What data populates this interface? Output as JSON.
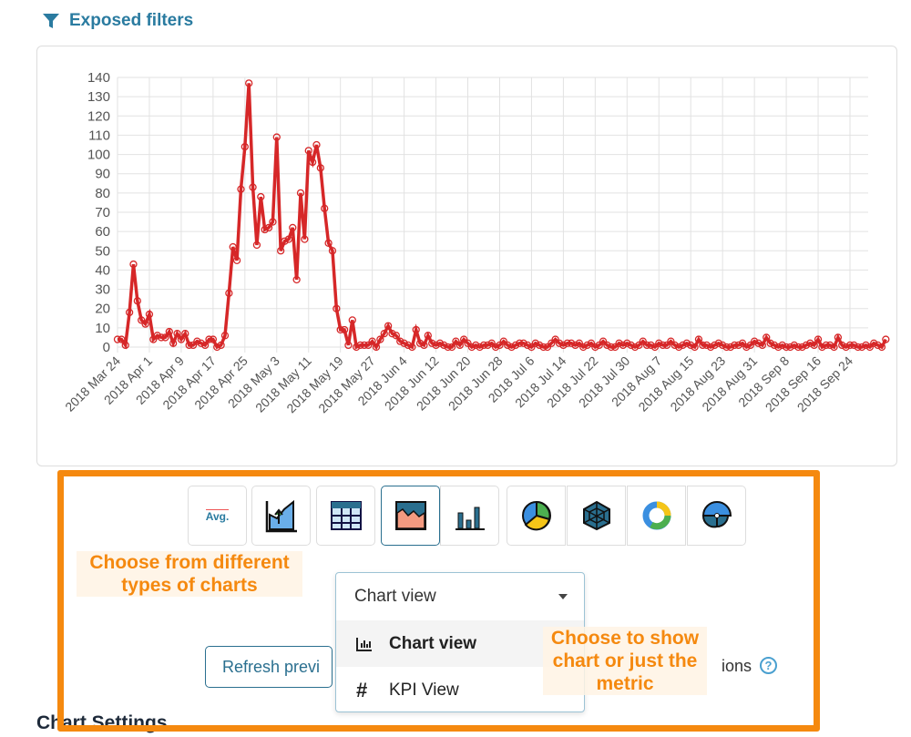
{
  "header": {
    "title": "Exposed filters",
    "icon": "filter-icon"
  },
  "chart_data": {
    "type": "line",
    "x_start": "2018-03-24",
    "x_interval": "1 day",
    "xtick_labels": [
      "2018 Mar 24",
      "2018 Apr 1",
      "2018 Apr 9",
      "2018 Apr 17",
      "2018 Apr 25",
      "2018 May 3",
      "2018 May 11",
      "2018 May 19",
      "2018 May 27",
      "2018 Jun 4",
      "2018 Jun 12",
      "2018 Jun 20",
      "2018 Jun 28",
      "2018 Jul 6",
      "2018 Jul 14",
      "2018 Jul 22",
      "2018 Jul 30",
      "2018 Aug 7",
      "2018 Aug 15",
      "2018 Aug 23",
      "2018 Aug 31",
      "2018 Sep 8",
      "2018 Sep 16",
      "2018 Sep 24"
    ],
    "yticks": [
      0,
      10,
      20,
      30,
      40,
      50,
      60,
      70,
      80,
      90,
      100,
      110,
      120,
      130,
      140
    ],
    "ylim": [
      0,
      140
    ],
    "grid": true,
    "color": "#d62728",
    "values": [
      4,
      4,
      1,
      18,
      43,
      24,
      14,
      12,
      17,
      4,
      6,
      5,
      5,
      8,
      2,
      7,
      4,
      7,
      1,
      1,
      3,
      2,
      1,
      4,
      4,
      0,
      1,
      6,
      28,
      52,
      45,
      82,
      104,
      137,
      83,
      53,
      78,
      61,
      62,
      65,
      109,
      50,
      55,
      56,
      62,
      35,
      80,
      56,
      102,
      96,
      105,
      93,
      72,
      54,
      50,
      20,
      9,
      9,
      1,
      14,
      0,
      1,
      1,
      1,
      3,
      0,
      4,
      7,
      11,
      7,
      6,
      3,
      2,
      1,
      0,
      9,
      2,
      1,
      6,
      2,
      1,
      2,
      1,
      0,
      0,
      3,
      1,
      4,
      2,
      0,
      1,
      0,
      1,
      1,
      2,
      0,
      1,
      3,
      1,
      0,
      1,
      2,
      2,
      1,
      0,
      2,
      1,
      0,
      0,
      2,
      4,
      2,
      1,
      2,
      2,
      1,
      2,
      0,
      1,
      2,
      0,
      1,
      3,
      1,
      0,
      0,
      2,
      1,
      2,
      1,
      0,
      1,
      3,
      1,
      1,
      0,
      2,
      1,
      1,
      3,
      1,
      0,
      1,
      2,
      1,
      0,
      4,
      1,
      1,
      0,
      1,
      2,
      1,
      0,
      0,
      1,
      1,
      2,
      0,
      1,
      3,
      2,
      1,
      5,
      2,
      1,
      0,
      1,
      0,
      0,
      1,
      0,
      0,
      1,
      2,
      1,
      4,
      0,
      1,
      1,
      0,
      5,
      1,
      0,
      1,
      1,
      0,
      0,
      1,
      0,
      2,
      1,
      0,
      4
    ]
  },
  "toolbar": {
    "buttons": [
      {
        "name": "kpi-avg",
        "label": "Avg.",
        "icon": "avg-icon"
      },
      {
        "name": "area-up",
        "icon": "area-growth-icon"
      },
      {
        "name": "table",
        "icon": "table-icon"
      },
      {
        "name": "area",
        "icon": "area-chart-icon",
        "active": true
      },
      {
        "name": "bar",
        "icon": "bar-chart-icon"
      },
      {
        "name": "pie",
        "icon": "pie-chart-icon"
      },
      {
        "name": "radar",
        "icon": "radar-chart-icon"
      },
      {
        "name": "donut",
        "icon": "donut-chart-icon"
      },
      {
        "name": "polar",
        "icon": "polar-chart-icon"
      }
    ]
  },
  "annotations": {
    "chart_types": "Choose from different types of charts",
    "view": "Choose to show chart or just the metric"
  },
  "view_select": {
    "value": "Chart view",
    "options": [
      {
        "label": "Chart view",
        "icon": "chart-bar-icon",
        "selected": true
      },
      {
        "label": "KPI View",
        "icon": "hash-icon"
      }
    ]
  },
  "refresh_label": "Refresh previ",
  "options_label": "ions",
  "help": "?",
  "section_title": "Chart Settings",
  "colors": {
    "accent": "#2a7ba0",
    "highlight": "#f5890f",
    "line": "#d62728"
  }
}
